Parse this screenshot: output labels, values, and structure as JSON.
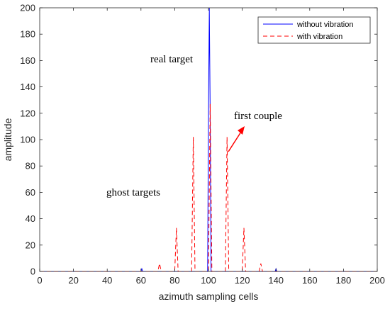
{
  "chart_data": {
    "type": "line",
    "xlabel": "azimuth sampling cells",
    "ylabel": "amplitude",
    "xlim": [
      0,
      200
    ],
    "ylim": [
      0,
      200
    ],
    "xticks": [
      0,
      20,
      40,
      60,
      80,
      100,
      120,
      140,
      160,
      180,
      200
    ],
    "yticks": [
      0,
      20,
      40,
      60,
      80,
      100,
      120,
      140,
      160,
      180,
      200
    ],
    "grid": false,
    "legend_position": "top-right",
    "series": [
      {
        "name": "without vibration",
        "color": "#0000ff",
        "style": "solid",
        "points": [
          [
            0,
            0
          ],
          [
            60,
            0
          ],
          [
            60.5,
            2
          ],
          [
            61,
            0
          ],
          [
            99.5,
            0
          ],
          [
            100,
            120
          ],
          [
            100.5,
            200
          ],
          [
            101,
            120
          ],
          [
            101.5,
            0
          ],
          [
            139.5,
            0
          ],
          [
            140,
            2
          ],
          [
            140.5,
            0
          ],
          [
            200,
            0
          ]
        ]
      },
      {
        "name": "with vibration",
        "color": "#ff0000",
        "style": "dashed",
        "points": [
          [
            0,
            0
          ],
          [
            70,
            0
          ],
          [
            71,
            6
          ],
          [
            72,
            0
          ],
          [
            80,
            0
          ],
          [
            81,
            33
          ],
          [
            82,
            0
          ],
          [
            90,
            0
          ],
          [
            91,
            102
          ],
          [
            92,
            0
          ],
          [
            100,
            0
          ],
          [
            101,
            127
          ],
          [
            102,
            0
          ],
          [
            110,
            0
          ],
          [
            111,
            102
          ],
          [
            112,
            0
          ],
          [
            120,
            0
          ],
          [
            121,
            33
          ],
          [
            122,
            0
          ],
          [
            130,
            0
          ],
          [
            131,
            6
          ],
          [
            132,
            0
          ],
          [
            200,
            0
          ]
        ]
      }
    ],
    "annotations": [
      {
        "id": "real",
        "text": "real target"
      },
      {
        "id": "first",
        "text": "first couple"
      },
      {
        "id": "ghost",
        "text": "ghost targets"
      }
    ]
  }
}
